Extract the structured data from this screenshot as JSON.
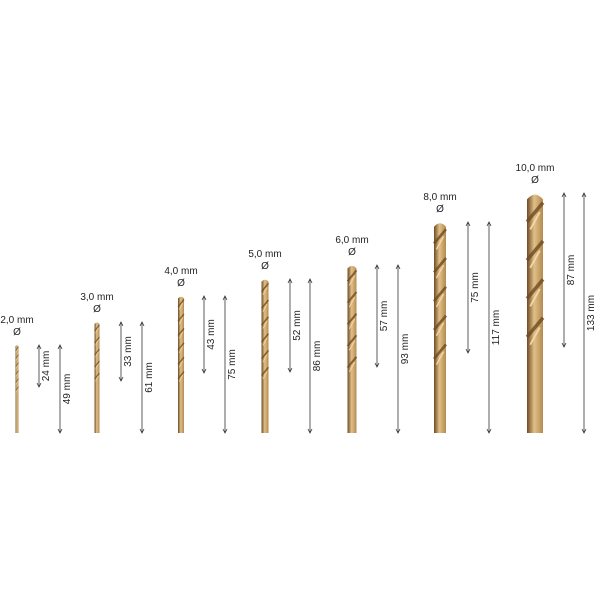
{
  "colors": {
    "bit_light": "#e0c089",
    "bit_mid": "#b58a4e",
    "bit_dark": "#6e4a22",
    "line": "#333333"
  },
  "diameter_symbol": "Ø",
  "bits": [
    {
      "diameter": "2,0 mm",
      "flute_length": "24 mm",
      "total_length": "49 mm"
    },
    {
      "diameter": "3,0 mm",
      "flute_length": "33 mm",
      "total_length": "61 mm"
    },
    {
      "diameter": "4,0 mm",
      "flute_length": "43 mm",
      "total_length": "75 mm"
    },
    {
      "diameter": "5,0 mm",
      "flute_length": "52 mm",
      "total_length": "86 mm"
    },
    {
      "diameter": "6,0 mm",
      "flute_length": "57 mm",
      "total_length": "93 mm"
    },
    {
      "diameter": "8,0 mm",
      "flute_length": "75 mm",
      "total_length": "117 mm"
    },
    {
      "diameter": "10,0 mm",
      "flute_length": "87 mm",
      "total_length": "133 mm"
    }
  ]
}
